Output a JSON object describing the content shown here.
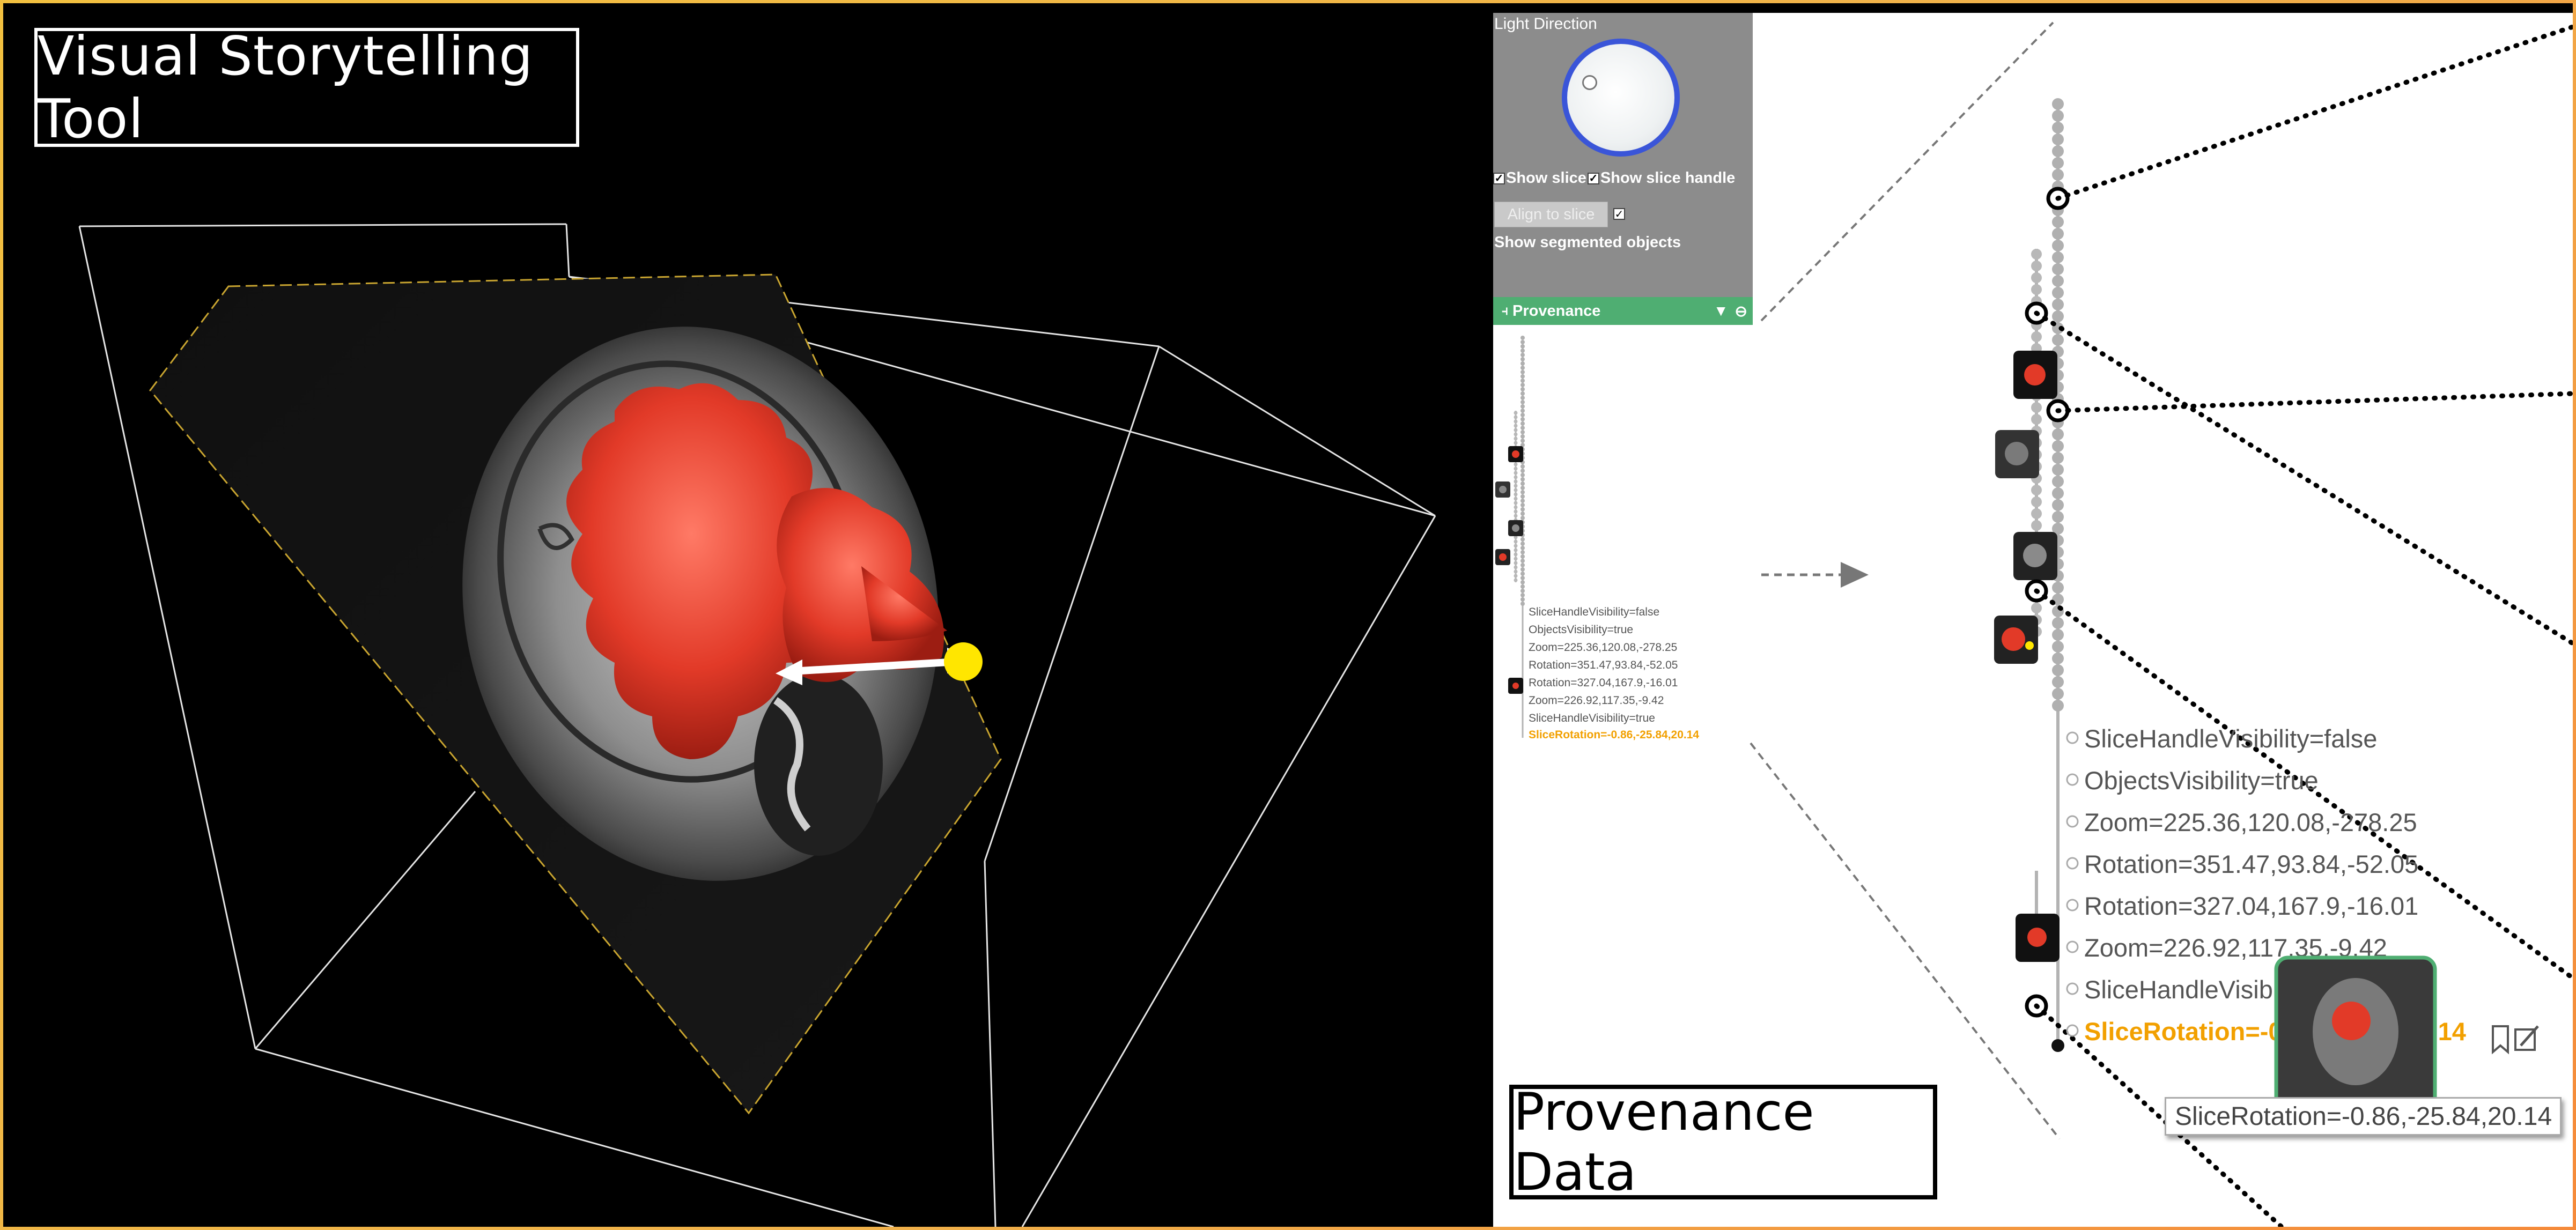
{
  "story_title": "Visual Storytelling Tool",
  "panel": {
    "light_direction_label": "Light Direction",
    "show_slice_label": "Show slice",
    "show_slice_handle_label": "Show slice handle",
    "align_to_slice_label": "Align to slice",
    "show_segmented_objects_label": "Show segmented objects",
    "show_slice_checked": true,
    "show_slice_handle_checked": true,
    "show_segmented_objects_checked": true
  },
  "provenance": {
    "header": "Provenance",
    "entries": [
      "SliceHandleVisibility=false",
      "ObjectsVisibility=true",
      "Zoom=225.36,120.08,-278.25",
      "Rotation=351.47,93.84,-52.05",
      "Rotation=327.04,167.9,-16.01",
      "Zoom=226.92,117.35,-9.42",
      "SliceHandleVisibility=true",
      "SliceRotation=-0.86,-25.84,20.14"
    ],
    "zoom_entries": [
      "SliceHandleVisibility=false",
      "ObjectsVisibility=true",
      "Zoom=225.36,120.08,-278.25",
      "Rotation=351.47,93.84,-52.05",
      "Rotation=327.04,167.9,-16.01",
      "Zoom=226.92,117.35,-9.42",
      "SliceHandleVisibility=true",
      "SliceRotation=-0.86,-25.84,20.14"
    ],
    "tooltip": "SliceRotation=-0.86,-25.84,20.14"
  },
  "provenance_title": "Provenance Data",
  "colors": {
    "accent_header": "#4fae72",
    "highlight": "#f2a000",
    "segmentation": "#e23a28",
    "slice_handle": "#ffe600",
    "light_ring": "#3a55d8"
  }
}
